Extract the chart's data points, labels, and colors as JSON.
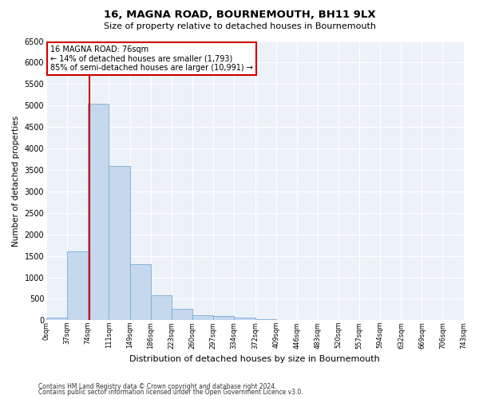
{
  "title": "16, MAGNA ROAD, BOURNEMOUTH, BH11 9LX",
  "subtitle": "Size of property relative to detached houses in Bournemouth",
  "xlabel": "Distribution of detached houses by size in Bournemouth",
  "ylabel": "Number of detached properties",
  "footnote1": "Contains HM Land Registry data © Crown copyright and database right 2024.",
  "footnote2": "Contains public sector information licensed under the Open Government Licence v3.0.",
  "annotation_title": "16 MAGNA ROAD: 76sqm",
  "annotation_line1": "← 14% of detached houses are smaller (1,793)",
  "annotation_line2": "85% of semi-detached houses are larger (10,991) →",
  "bar_edges": [
    0,
    37,
    74,
    111,
    149,
    186,
    223,
    260,
    297,
    334,
    372,
    409,
    446,
    483,
    520,
    557,
    594,
    632,
    669,
    706,
    743
  ],
  "bar_heights": [
    60,
    1600,
    5050,
    3600,
    1300,
    580,
    270,
    120,
    100,
    60,
    30,
    10,
    5,
    2,
    1,
    0,
    0,
    0,
    0,
    0
  ],
  "bar_color": "#c5d8ee",
  "bar_edge_color": "#7aadd4",
  "vline_color": "#cc0000",
  "vline_x": 76,
  "annotation_box_color": "#cc0000",
  "background_color": "#edf2f9",
  "ylim": [
    0,
    6500
  ],
  "yticks": [
    0,
    500,
    1000,
    1500,
    2000,
    2500,
    3000,
    3500,
    4000,
    4500,
    5000,
    5500,
    6000,
    6500
  ],
  "tick_labels": [
    "0sqm",
    "37sqm",
    "74sqm",
    "111sqm",
    "149sqm",
    "186sqm",
    "223sqm",
    "260sqm",
    "297sqm",
    "334sqm",
    "372sqm",
    "409sqm",
    "446sqm",
    "483sqm",
    "520sqm",
    "557sqm",
    "594sqm",
    "632sqm",
    "669sqm",
    "706sqm",
    "743sqm"
  ]
}
